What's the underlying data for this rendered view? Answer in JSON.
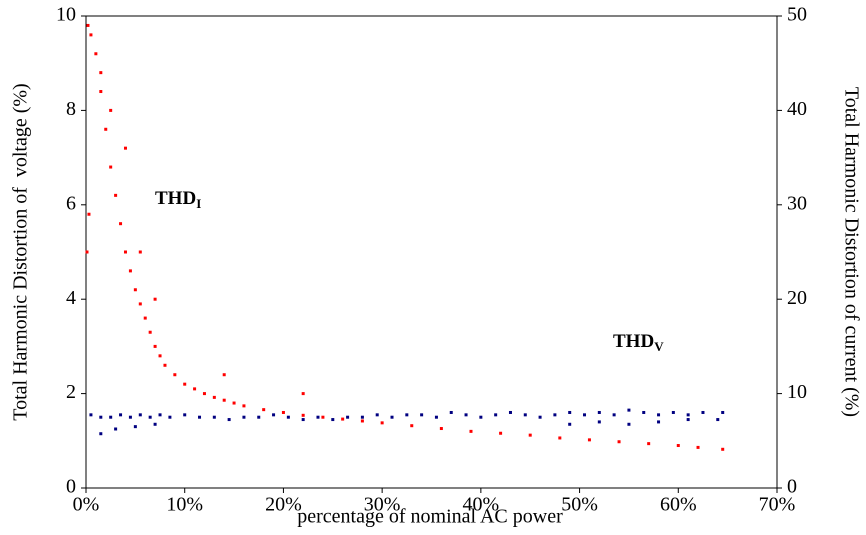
{
  "chart_data": {
    "type": "scatter",
    "xlabel": "percentage of nominal AC power",
    "ylabel": "Total Harmonic Distortion of  voltage (%)",
    "y2label": "Total Harmonic Distortion of current (%)",
    "xlim": [
      0,
      70
    ],
    "xticks": [
      {
        "value": 0,
        "label": "0%"
      },
      {
        "value": 10,
        "label": "10%"
      },
      {
        "value": 20,
        "label": "20%"
      },
      {
        "value": 30,
        "label": "30%"
      },
      {
        "value": 40,
        "label": "40%"
      },
      {
        "value": 50,
        "label": "50%"
      },
      {
        "value": 60,
        "label": "60%"
      },
      {
        "value": 70,
        "label": "70%"
      }
    ],
    "ylim": [
      0,
      10
    ],
    "yticks": [
      0,
      2,
      4,
      6,
      8,
      10
    ],
    "y2lim": [
      0,
      50
    ],
    "y2ticks": [
      0,
      10,
      20,
      30,
      40,
      50
    ],
    "annotations": [
      {
        "text": "THD",
        "sub": "I",
        "color": "#ff0000"
      },
      {
        "text": "THD",
        "sub": "V",
        "color": "#000080"
      }
    ],
    "series": [
      {
        "color": "#ff0000",
        "axis": "y2",
        "x": [
          0.2,
          0.5,
          1,
          1.5,
          2,
          2.5,
          3,
          3.5,
          4,
          4.5,
          5,
          5.5,
          6,
          6.5,
          7,
          7.5,
          8,
          9,
          10,
          11,
          12,
          13,
          14,
          15,
          16,
          18,
          20,
          22,
          24,
          26,
          28,
          30,
          33,
          36,
          39,
          42,
          45,
          48,
          51,
          54,
          57,
          60,
          62,
          64.5,
          1.5,
          2.5,
          4,
          5.5,
          7,
          14,
          22,
          0.1,
          0.3
        ],
        "values": [
          49,
          48,
          46,
          42,
          38,
          34,
          31,
          28,
          25,
          23,
          21,
          19.5,
          18,
          16.5,
          15,
          14,
          13,
          12,
          11,
          10.5,
          10,
          9.6,
          9.3,
          9,
          8.7,
          8.3,
          8,
          7.7,
          7.5,
          7.3,
          7.1,
          6.9,
          6.6,
          6.3,
          6,
          5.8,
          5.6,
          5.3,
          5.1,
          4.9,
          4.7,
          4.5,
          4.3,
          4.1,
          44,
          40,
          36,
          25,
          20,
          12,
          10,
          25,
          29
        ]
      },
      {
        "color": "#000080",
        "x": [
          0.5,
          1.5,
          2.5,
          3.5,
          4.5,
          5.5,
          6.5,
          7.5,
          8.5,
          10,
          11.5,
          13,
          14.5,
          16,
          17.5,
          19,
          20.5,
          22,
          23.5,
          25,
          26.5,
          28,
          29.5,
          31,
          32.5,
          34,
          35.5,
          37,
          38.5,
          40,
          41.5,
          43,
          44.5,
          46,
          47.5,
          49,
          50.5,
          52,
          53.5,
          55,
          56.5,
          58,
          59.5,
          61,
          62.5,
          64.5,
          1.5,
          3,
          5,
          7,
          49,
          52,
          55,
          58,
          61,
          64
        ],
        "values": [
          1.55,
          1.5,
          1.5,
          1.55,
          1.5,
          1.55,
          1.5,
          1.55,
          1.5,
          1.55,
          1.5,
          1.5,
          1.45,
          1.5,
          1.5,
          1.55,
          1.5,
          1.45,
          1.5,
          1.45,
          1.5,
          1.5,
          1.55,
          1.5,
          1.55,
          1.55,
          1.5,
          1.6,
          1.55,
          1.5,
          1.55,
          1.6,
          1.55,
          1.5,
          1.55,
          1.6,
          1.55,
          1.6,
          1.55,
          1.65,
          1.6,
          1.55,
          1.6,
          1.55,
          1.6,
          1.6,
          1.15,
          1.25,
          1.3,
          1.35,
          1.35,
          1.4,
          1.35,
          1.4,
          1.45,
          1.45
        ]
      }
    ]
  }
}
